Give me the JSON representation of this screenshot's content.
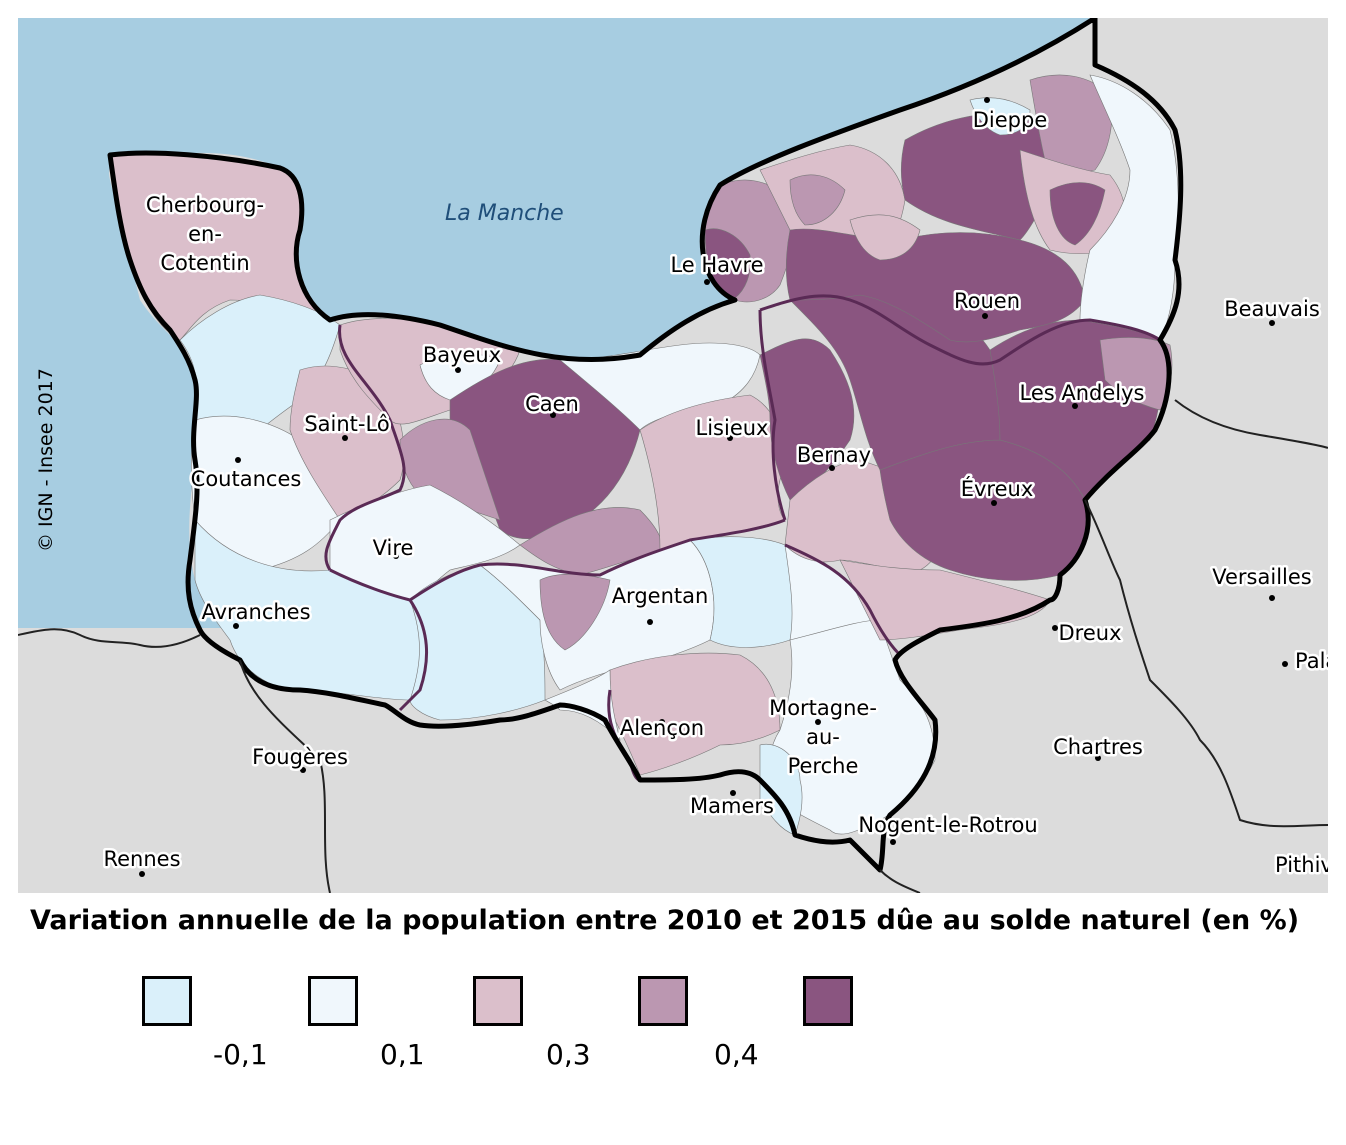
{
  "map": {
    "sea_label": "La Manche",
    "credit": "© IGN - Insee 2017",
    "colors": {
      "sea": "#a7cde1",
      "land_outside": "#dcdcdc",
      "region_border": "#000000",
      "department_border": "#5a2a55"
    },
    "cities": [
      {
        "name": "Cherbourg-\nen-\nCotentin"
      },
      {
        "name": "Dieppe"
      },
      {
        "name": "Le Havre"
      },
      {
        "name": "Rouen"
      },
      {
        "name": "Beauvais"
      },
      {
        "name": "Bayeux"
      },
      {
        "name": "Caen"
      },
      {
        "name": "Lisieux"
      },
      {
        "name": "Saint-Lô"
      },
      {
        "name": "Les Andelys"
      },
      {
        "name": "Bernay"
      },
      {
        "name": "Coutances"
      },
      {
        "name": "Évreux"
      },
      {
        "name": "Vire"
      },
      {
        "name": "Versailles"
      },
      {
        "name": "Argentan"
      },
      {
        "name": "Avranches"
      },
      {
        "name": "Dreux"
      },
      {
        "name": "Palaiseau"
      },
      {
        "name": "Alençon"
      },
      {
        "name": "Mortagne-\nau-\nPerche"
      },
      {
        "name": "Fougères"
      },
      {
        "name": "Chartres"
      },
      {
        "name": "Mamers"
      },
      {
        "name": "Nogent-le-Rotrou"
      },
      {
        "name": "Rennes"
      },
      {
        "name": "Pithiviers"
      }
    ]
  },
  "legend": {
    "title": "Variation annuelle de la population entre 2010 et 2015 dûe au solde naturel (en %)",
    "classes": [
      {
        "color": "#daf0fa"
      },
      {
        "color": "#f0f7fc"
      },
      {
        "color": "#dbbfcb"
      },
      {
        "color": "#bb97b1"
      },
      {
        "color": "#8a5580"
      }
    ],
    "thresholds": [
      "-0,1",
      "0,1",
      "0,3",
      "0,4"
    ]
  }
}
